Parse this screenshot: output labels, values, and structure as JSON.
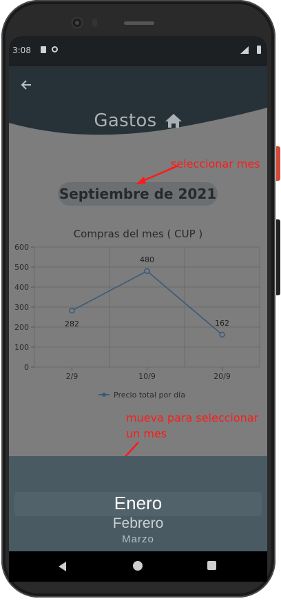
{
  "status_bar": {
    "time": "3:08"
  },
  "header": {
    "title": "Gastos",
    "back_icon": "arrow-left-icon",
    "home_icon": "home-icon"
  },
  "month_selector": {
    "label": "Septiembre de 2021"
  },
  "annotations": {
    "select_month": "seleccionar mes",
    "scroll_hint_line1": "mueva para seleccionar",
    "scroll_hint_line2": "un mes"
  },
  "chart_data": {
    "type": "line",
    "title": "Compras del mes ( CUP )",
    "categories": [
      "2/9",
      "10/9",
      "20/9"
    ],
    "series": [
      {
        "name": "Precio total por día",
        "values": [
          282,
          480,
          162
        ],
        "color": "#3a5a7a"
      }
    ],
    "ylim": [
      0,
      600
    ],
    "yticks": [
      0,
      100,
      200,
      300,
      400,
      500,
      600
    ],
    "data_labels": [
      "282",
      "480",
      "162"
    ],
    "grid": true,
    "legend": "bottom"
  },
  "month_picker": {
    "items": [
      "Enero",
      "Febrero",
      "Marzo"
    ],
    "selected": "Enero"
  },
  "colors": {
    "header": "#263238",
    "overlay": "#7d7d7d",
    "annotation": "#ff1a1a",
    "picker": "#4a5a62"
  }
}
